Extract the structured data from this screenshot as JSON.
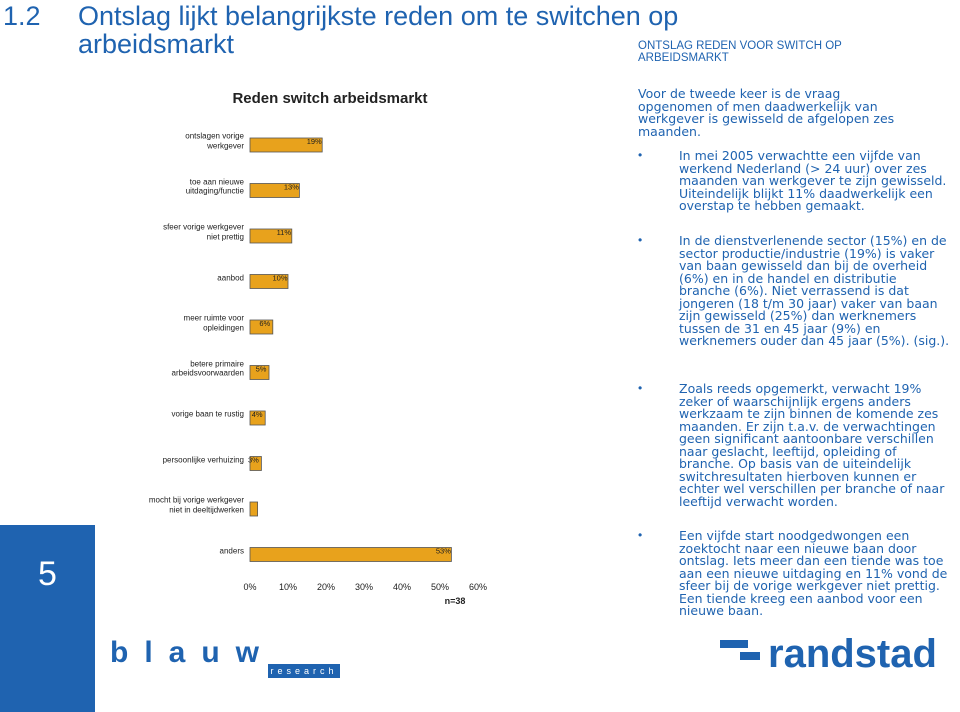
{
  "header": {
    "number": "1.2",
    "title": "Ontslag lijkt belangrijkste reden om te switchen op arbeidsmarkt",
    "section": "ONTSLAG REDEN VOOR SWITCH OP ARBEIDSMARKT"
  },
  "page_number": "5",
  "chart_data": {
    "type": "bar",
    "orientation": "horizontal",
    "title": "Reden switch arbeidsmarkt",
    "categories": [
      "ontslagen vorige werkgever",
      "toe aan nieuwe uitdaging/functie",
      "sfeer vorige werkgever niet prettig",
      "aanbod",
      "meer ruimte voor opleidingen",
      "betere primaire arbeidsvoorwaarden",
      "vorige baan te rustig",
      "persoonlijke verhuizing",
      "mocht bij vorige werkgever niet in deeltijdwerken",
      "anders"
    ],
    "values": [
      19,
      13,
      11,
      10,
      6,
      5,
      4,
      3,
      2,
      53
    ],
    "value_labels": [
      "19%",
      "13%",
      "11%",
      "10%",
      "6%",
      "5%",
      "4%",
      "3%",
      null,
      "53%"
    ],
    "color": "#e8a21c",
    "xlim": [
      0,
      60
    ],
    "xticks": [
      {
        "value": 0,
        "label": "0%"
      },
      {
        "value": 10,
        "label": "10%"
      },
      {
        "value": 20,
        "label": "20%"
      },
      {
        "value": 30,
        "label": "30%"
      },
      {
        "value": 40,
        "label": "40%"
      },
      {
        "value": 50,
        "label": "50%"
      },
      {
        "value": 60,
        "label": "60%"
      }
    ],
    "annotation": "n=38"
  },
  "intro": "Voor de tweede keer is de vraag opgenomen of men daadwerkelijk van werkgever is gewisseld de afgelopen zes maanden.",
  "bullets": [
    "In mei 2005 verwachtte een vijfde van werkend Nederland (> 24 uur) over zes maanden van werkgever te zijn gewisseld. Uiteindelijk blijkt 11% daadwerkelijk een overstap te hebben gemaakt.",
    "In de dienstverlenende sector (15%) en de sector productie/industrie (19%) is vaker van baan gewisseld dan bij de overheid (6%) en in de handel en distributie branche (6%). Niet verrassend is dat jongeren (18 t/m 30 jaar) vaker van baan zijn gewisseld (25%) dan werknemers tussen de 31 en 45 jaar (9%) en werknemers ouder dan 45 jaar (5%). (sig.).",
    "Zoals reeds opgemerkt, verwacht 19% zeker of waarschijnlijk ergens anders werkzaam te zijn binnen de komende zes maanden. Er zijn t.a.v. de verwachtingen geen significant aantoonbare verschillen naar geslacht, leeftijd, opleiding of branche. Op basis van de uiteindelijk switchresultaten hierboven kunnen er echter wel verschillen per branche of naar leeftijd verwacht worden.",
    "Een vijfde start noodgedwongen een zoektocht naar een nieuwe baan door ontslag. Iets meer dan een tiende was toe aan een nieuwe uitdaging en 11% vond de sfeer bij de vorige werkgever niet prettig. Een tiende kreeg een aanbod voor een nieuwe baan."
  ],
  "logos": {
    "left": "blauw",
    "left_sub": "research",
    "right": "randstad"
  }
}
